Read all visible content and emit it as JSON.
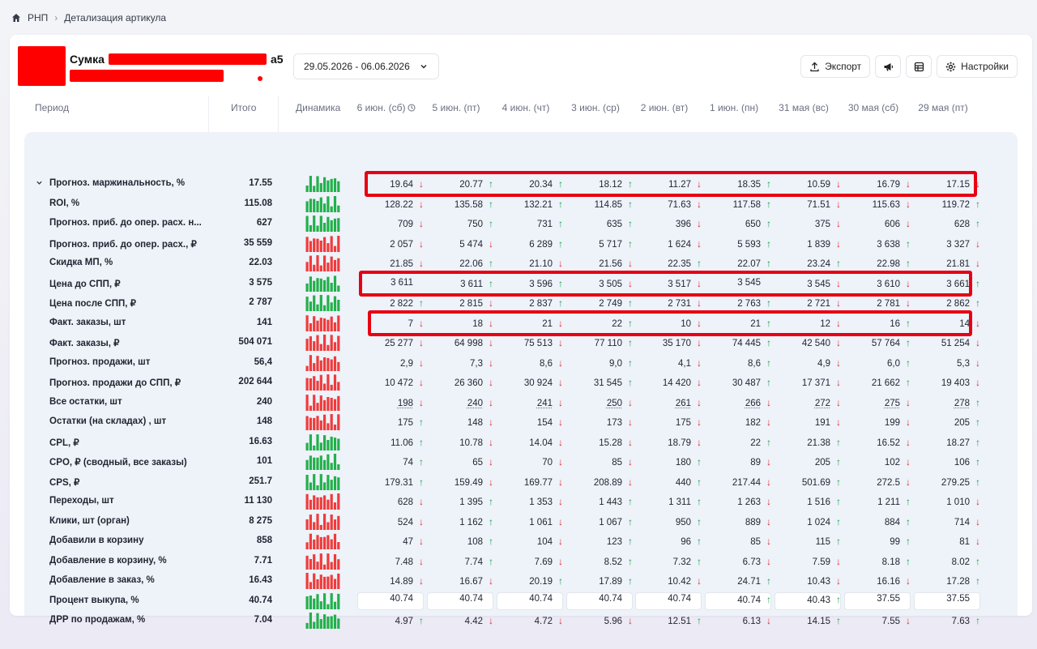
{
  "breadcrumb": {
    "home": "РНП",
    "current": "Детализация артикула"
  },
  "product": {
    "title": "Сумка",
    "suffix": "а5"
  },
  "date_range": "29.05.2026 - 06.06.2026",
  "toolbar": {
    "export_label": "Экспорт",
    "settings_label": "Настройки"
  },
  "columns": {
    "period": "Период",
    "total": "Итого",
    "dynamics": "Динамика",
    "days": [
      "6 июн. (сб)",
      "5 июн. (пт)",
      "4 июн. (чт)",
      "3 июн. (ср)",
      "2 июн. (вт)",
      "1 июн. (пн)",
      "31 мая (вс)",
      "30 мая (сб)",
      "29 мая (пт)"
    ]
  },
  "colors": {
    "up": "#16a34a",
    "down": "#e3262b",
    "highlight": "#e60012",
    "spark_green": "#22b04b",
    "spark_red": "#ef3b3b"
  },
  "rows": [
    {
      "label": "Прогноз. маржинальность, %",
      "total": "17.55",
      "spark": "green",
      "values": [
        "19.64",
        "20.77",
        "20.34",
        "18.12",
        "11.27",
        "18.35",
        "10.59",
        "16.79",
        "17.15"
      ],
      "arrows": [
        "down",
        "up",
        "up",
        "up",
        "down",
        "up",
        "down",
        "down",
        "down"
      ],
      "expandable": true
    },
    {
      "label": "ROI, %",
      "total": "115.08",
      "spark": "green",
      "values": [
        "128.22",
        "135.58",
        "132.21",
        "114.85",
        "71.63",
        "117.58",
        "71.51",
        "115.63",
        "119.72"
      ],
      "arrows": [
        "down",
        "up",
        "up",
        "up",
        "down",
        "up",
        "down",
        "down",
        "up"
      ]
    },
    {
      "label": "Прогноз. приб. до опер. расх. н...",
      "total": "627",
      "spark": "green",
      "values": [
        "709",
        "750",
        "731",
        "635",
        "396",
        "650",
        "375",
        "606",
        "628"
      ],
      "arrows": [
        "down",
        "up",
        "up",
        "up",
        "down",
        "up",
        "down",
        "down",
        "up"
      ]
    },
    {
      "label": "Прогноз. приб. до опер. расх., ₽",
      "total": "35 559",
      "spark": "red",
      "values": [
        "2 057",
        "5 474",
        "6 289",
        "5 717",
        "1 624",
        "5 593",
        "1 839",
        "3 638",
        "3 327"
      ],
      "arrows": [
        "down",
        "down",
        "up",
        "up",
        "down",
        "up",
        "down",
        "up",
        "down"
      ]
    },
    {
      "label": "Скидка МП, %",
      "total": "22.03",
      "spark": "red",
      "values": [
        "21.85",
        "22.06",
        "21.10",
        "21.56",
        "22.35",
        "22.07",
        "23.24",
        "22.98",
        "21.81"
      ],
      "arrows": [
        "down",
        "up",
        "down",
        "down",
        "up",
        "up",
        "up",
        "up",
        "down"
      ]
    },
    {
      "label": "Цена до СПП, ₽",
      "total": "3 575",
      "spark": "green",
      "values": [
        "3 611",
        "3 611",
        "3 596",
        "3 505",
        "3 517",
        "3 545",
        "3 545",
        "3 610",
        "3 661"
      ],
      "arrows": [
        "",
        "up",
        "up",
        "down",
        "down",
        "",
        "down",
        "down",
        "up"
      ]
    },
    {
      "label": "Цена после СПП, ₽",
      "total": "2 787",
      "spark": "green",
      "values": [
        "2 822",
        "2 815",
        "2 837",
        "2 749",
        "2 731",
        "2 763",
        "2 721",
        "2 781",
        "2 862"
      ],
      "arrows": [
        "up",
        "down",
        "up",
        "up",
        "down",
        "up",
        "down",
        "down",
        "up"
      ]
    },
    {
      "label": "Факт. заказы, шт",
      "total": "141",
      "spark": "red",
      "values": [
        "7",
        "18",
        "21",
        "22",
        "10",
        "21",
        "12",
        "16",
        "14"
      ],
      "arrows": [
        "down",
        "down",
        "down",
        "up",
        "down",
        "up",
        "down",
        "up",
        "down"
      ]
    },
    {
      "label": "Факт. заказы, ₽",
      "total": "504 071",
      "spark": "red",
      "values": [
        "25 277",
        "64 998",
        "75 513",
        "77 110",
        "35 170",
        "74 445",
        "42 540",
        "57 764",
        "51 254"
      ],
      "arrows": [
        "down",
        "down",
        "down",
        "up",
        "down",
        "up",
        "down",
        "up",
        "down"
      ]
    },
    {
      "label": "Прогноз. продажи, шт",
      "total": "56,4",
      "spark": "red",
      "values": [
        "2,9",
        "7,3",
        "8,6",
        "9,0",
        "4,1",
        "8,6",
        "4,9",
        "6,0",
        "5,3"
      ],
      "arrows": [
        "down",
        "down",
        "down",
        "up",
        "down",
        "up",
        "down",
        "up",
        "down"
      ]
    },
    {
      "label": "Прогноз. продажи до СПП, ₽",
      "total": "202 644",
      "spark": "red",
      "values": [
        "10 472",
        "26 360",
        "30 924",
        "31 545",
        "14 420",
        "30 487",
        "17 371",
        "21 662",
        "19 403"
      ],
      "arrows": [
        "down",
        "down",
        "down",
        "up",
        "down",
        "up",
        "down",
        "up",
        "down"
      ]
    },
    {
      "label": "Все остатки, шт",
      "total": "240",
      "spark": "red",
      "values": [
        "198",
        "240",
        "241",
        "250",
        "261",
        "266",
        "272",
        "275",
        "278"
      ],
      "arrows": [
        "down",
        "down",
        "down",
        "down",
        "down",
        "down",
        "down",
        "down",
        "up"
      ],
      "dotted": true
    },
    {
      "label": "Остатки (на складах) , шт",
      "total": "148",
      "spark": "red",
      "values": [
        "175",
        "148",
        "154",
        "173",
        "175",
        "182",
        "191",
        "199",
        "205"
      ],
      "arrows": [
        "up",
        "down",
        "down",
        "down",
        "down",
        "down",
        "down",
        "down",
        "up"
      ]
    },
    {
      "label": "CPL, ₽",
      "total": "16.63",
      "spark": "green",
      "values": [
        "11.06",
        "10.78",
        "14.04",
        "15.28",
        "18.79",
        "22",
        "21.38",
        "16.52",
        "18.27"
      ],
      "arrows": [
        "up",
        "down",
        "down",
        "down",
        "down",
        "up",
        "up",
        "down",
        "up"
      ]
    },
    {
      "label": "CPO, ₽ (сводный, все заказы)",
      "total": "101",
      "spark": "green",
      "values": [
        "74",
        "65",
        "70",
        "85",
        "180",
        "89",
        "205",
        "102",
        "106"
      ],
      "arrows": [
        "up",
        "down",
        "down",
        "down",
        "up",
        "down",
        "up",
        "down",
        "up"
      ]
    },
    {
      "label": "CPS, ₽",
      "total": "251.7",
      "spark": "green",
      "values": [
        "179.31",
        "159.49",
        "169.77",
        "208.89",
        "440",
        "217.44",
        "501.69",
        "272.5",
        "279.25"
      ],
      "arrows": [
        "up",
        "down",
        "down",
        "down",
        "up",
        "down",
        "up",
        "down",
        "up"
      ]
    },
    {
      "label": "Переходы, шт",
      "total": "11 130",
      "spark": "red",
      "values": [
        "628",
        "1 395",
        "1 353",
        "1 443",
        "1 311",
        "1 263",
        "1 516",
        "1 211",
        "1 010"
      ],
      "arrows": [
        "down",
        "up",
        "down",
        "up",
        "up",
        "down",
        "up",
        "up",
        "down"
      ]
    },
    {
      "label": "Клики, шт (орган)",
      "total": "8 275",
      "spark": "red",
      "values": [
        "524",
        "1 162",
        "1 061",
        "1 067",
        "950",
        "889",
        "1 024",
        "884",
        "714"
      ],
      "arrows": [
        "down",
        "up",
        "down",
        "up",
        "up",
        "down",
        "up",
        "up",
        "down"
      ]
    },
    {
      "label": "Добавили в корзину",
      "total": "858",
      "spark": "red",
      "values": [
        "47",
        "108",
        "104",
        "123",
        "96",
        "85",
        "115",
        "99",
        "81"
      ],
      "arrows": [
        "down",
        "up",
        "down",
        "up",
        "up",
        "down",
        "up",
        "up",
        "down"
      ]
    },
    {
      "label": "Добавление в корзину, %",
      "total": "7.71",
      "spark": "red",
      "values": [
        "7.48",
        "7.74",
        "7.69",
        "8.52",
        "7.32",
        "6.73",
        "7.59",
        "8.18",
        "8.02"
      ],
      "arrows": [
        "down",
        "up",
        "down",
        "up",
        "up",
        "down",
        "down",
        "up",
        "up"
      ]
    },
    {
      "label": "Добавление в заказ, %",
      "total": "16.43",
      "spark": "red",
      "values": [
        "14.89",
        "16.67",
        "20.19",
        "17.89",
        "10.42",
        "24.71",
        "10.43",
        "16.16",
        "17.28"
      ],
      "arrows": [
        "down",
        "down",
        "up",
        "up",
        "down",
        "up",
        "down",
        "down",
        "up"
      ]
    },
    {
      "label": "Процент выкупа, %",
      "total": "40.74",
      "spark": "green",
      "values": [
        "40.74",
        "40.74",
        "40.74",
        "40.74",
        "40.74",
        "40.74",
        "40.43",
        "37.55",
        "37.55"
      ],
      "arrows": [
        "",
        "",
        "",
        "",
        "",
        "up",
        "up",
        "",
        ""
      ],
      "boxed": true
    },
    {
      "label": "ДРР по продажам, %",
      "total": "7.04",
      "spark": "green",
      "values": [
        "4.97",
        "4.42",
        "4.72",
        "5.96",
        "12.51",
        "6.13",
        "14.15",
        "7.55",
        "7.63"
      ],
      "arrows": [
        "up",
        "down",
        "down",
        "down",
        "up",
        "down",
        "up",
        "down",
        "up"
      ]
    }
  ]
}
